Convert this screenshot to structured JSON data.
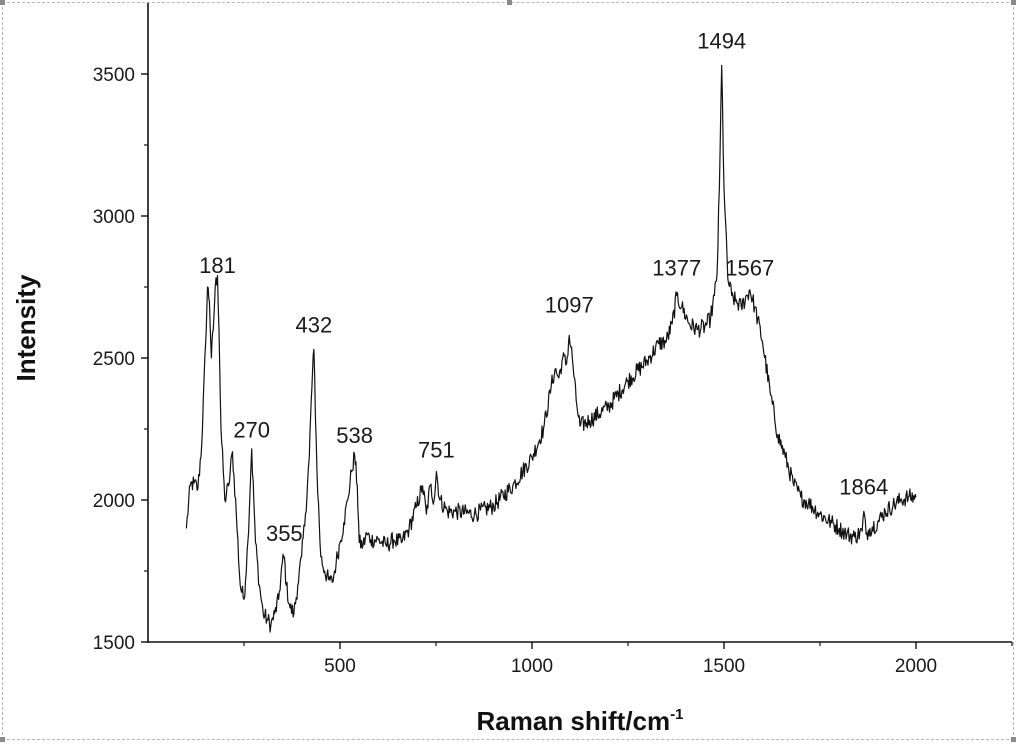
{
  "chart_data": {
    "type": "line",
    "title": "",
    "xlabel": "Raman shift/cm",
    "xlabel_superscript": "-1",
    "ylabel": "Intensity",
    "xlim": [
      0,
      2250
    ],
    "ylim": [
      1500,
      3750
    ],
    "x_ticks": [
      500,
      1000,
      1500,
      2000
    ],
    "y_ticks": [
      1500,
      2000,
      2500,
      3000,
      3500
    ],
    "grid": false,
    "legend": "none",
    "line_color": "#111111",
    "series": [
      {
        "x": [
          100,
          110,
          120,
          130,
          140,
          150,
          155,
          160,
          165,
          170,
          175,
          181,
          185,
          190,
          200,
          210,
          220,
          230,
          240,
          250,
          260,
          270,
          280,
          290,
          300,
          310,
          320,
          330,
          340,
          350,
          355,
          360,
          370,
          380,
          390,
          400,
          410,
          420,
          425,
          432,
          440,
          450,
          460,
          470,
          480,
          490,
          500,
          510,
          520,
          530,
          538,
          545,
          550,
          560,
          570,
          580,
          600,
          620,
          640,
          660,
          680,
          700,
          715,
          725,
          735,
          745,
          751,
          760,
          780,
          800,
          850,
          900,
          950,
          1000,
          1030,
          1050,
          1060,
          1070,
          1080,
          1090,
          1097,
          1105,
          1115,
          1125,
          1150,
          1200,
          1250,
          1300,
          1330,
          1350,
          1365,
          1377,
          1390,
          1410,
          1430,
          1450,
          1465,
          1475,
          1482,
          1488,
          1494,
          1500,
          1510,
          1520,
          1530,
          1545,
          1560,
          1567,
          1580,
          1600,
          1620,
          1640,
          1660,
          1680,
          1700,
          1720,
          1750,
          1780,
          1800,
          1820,
          1840,
          1860,
          1864,
          1870,
          1880,
          1900,
          1920,
          1940,
          1960,
          1980,
          2000
        ],
        "y": [
          1900,
          2050,
          2060,
          2040,
          2200,
          2550,
          2750,
          2700,
          2500,
          2600,
          2750,
          2790,
          2600,
          2250,
          2000,
          2050,
          2170,
          1950,
          1700,
          1650,
          1850,
          2180,
          1850,
          1700,
          1600,
          1580,
          1560,
          1600,
          1650,
          1780,
          1800,
          1700,
          1620,
          1600,
          1700,
          1800,
          1950,
          2150,
          2350,
          2530,
          2100,
          1800,
          1750,
          1720,
          1710,
          1780,
          1850,
          1920,
          2000,
          2100,
          2160,
          2050,
          1850,
          1840,
          1880,
          1860,
          1860,
          1840,
          1860,
          1850,
          1900,
          1980,
          2050,
          1950,
          2050,
          2000,
          2100,
          2000,
          1960,
          1960,
          1950,
          1980,
          2050,
          2150,
          2250,
          2400,
          2460,
          2430,
          2500,
          2480,
          2580,
          2500,
          2350,
          2260,
          2280,
          2330,
          2420,
          2490,
          2550,
          2560,
          2620,
          2720,
          2680,
          2620,
          2600,
          2610,
          2640,
          2720,
          2800,
          3100,
          3530,
          3100,
          2780,
          2720,
          2700,
          2680,
          2720,
          2740,
          2680,
          2560,
          2380,
          2230,
          2150,
          2060,
          2010,
          1990,
          1950,
          1920,
          1900,
          1880,
          1870,
          1890,
          1960,
          1880,
          1900,
          1920,
          1960,
          1980,
          2000,
          2010,
          2010
        ]
      }
    ],
    "annotations": [
      {
        "text": "181",
        "x": 181,
        "y": 2800
      },
      {
        "text": "270",
        "x": 270,
        "y": 2220
      },
      {
        "text": "355",
        "x": 355,
        "y": 1855
      },
      {
        "text": "432",
        "x": 432,
        "y": 2590
      },
      {
        "text": "538",
        "x": 538,
        "y": 2200
      },
      {
        "text": "751",
        "x": 751,
        "y": 2150
      },
      {
        "text": "1097",
        "x": 1097,
        "y": 2660
      },
      {
        "text": "1377",
        "x": 1377,
        "y": 2790
      },
      {
        "text": "1494",
        "x": 1494,
        "y": 3590
      },
      {
        "text": "1567",
        "x": 1567,
        "y": 2790
      },
      {
        "text": "1864",
        "x": 1864,
        "y": 2020
      }
    ]
  }
}
